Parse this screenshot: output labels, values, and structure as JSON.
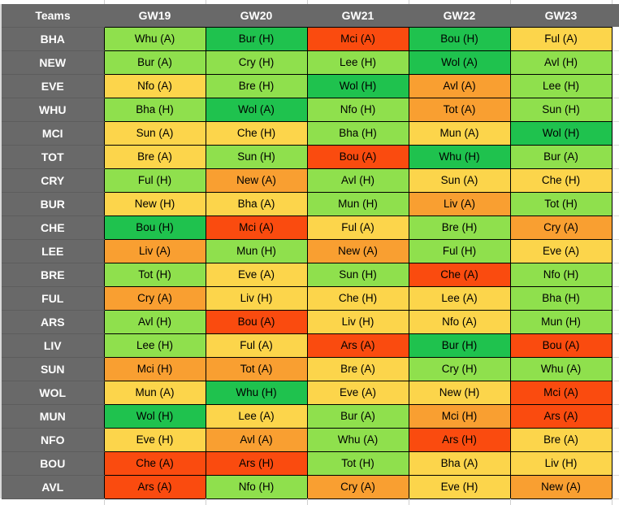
{
  "chart_data": {
    "type": "table",
    "description": "Fixture difficulty rating grid, teams vs gameweeks, cells colored by difficulty",
    "columns": [
      "Teams",
      "GW19",
      "GW20",
      "GW21",
      "GW22",
      "GW23"
    ],
    "difficulty_colors": {
      "easy": "#1fc24e",
      "fair": "#8fe04d",
      "medium": "#fcd54b",
      "hard": "#f99f31",
      "very_hard": "#fa4b0f"
    },
    "header_bg": "#696969",
    "header_text_color": "#ffffff",
    "cell_text_color": "#000000",
    "cell_border_color": "#000000",
    "rows": [
      {
        "team": "BHA",
        "fixtures": [
          {
            "label": "Whu (A)",
            "difficulty": "fair"
          },
          {
            "label": "Bur (H)",
            "difficulty": "easy"
          },
          {
            "label": "Mci (A)",
            "difficulty": "very_hard"
          },
          {
            "label": "Bou (H)",
            "difficulty": "easy"
          },
          {
            "label": "Ful (A)",
            "difficulty": "medium"
          }
        ]
      },
      {
        "team": "NEW",
        "fixtures": [
          {
            "label": "Bur (A)",
            "difficulty": "fair"
          },
          {
            "label": "Cry (H)",
            "difficulty": "fair"
          },
          {
            "label": "Lee (H)",
            "difficulty": "fair"
          },
          {
            "label": "Wol (A)",
            "difficulty": "easy"
          },
          {
            "label": "Avl (H)",
            "difficulty": "fair"
          }
        ]
      },
      {
        "team": "EVE",
        "fixtures": [
          {
            "label": "Nfo (A)",
            "difficulty": "medium"
          },
          {
            "label": "Bre (H)",
            "difficulty": "fair"
          },
          {
            "label": "Wol (H)",
            "difficulty": "easy"
          },
          {
            "label": "Avl (A)",
            "difficulty": "hard"
          },
          {
            "label": "Lee (H)",
            "difficulty": "fair"
          }
        ]
      },
      {
        "team": "WHU",
        "fixtures": [
          {
            "label": "Bha (H)",
            "difficulty": "fair"
          },
          {
            "label": "Wol (A)",
            "difficulty": "easy"
          },
          {
            "label": "Nfo (H)",
            "difficulty": "fair"
          },
          {
            "label": "Tot (A)",
            "difficulty": "hard"
          },
          {
            "label": "Sun (H)",
            "difficulty": "fair"
          }
        ]
      },
      {
        "team": "MCI",
        "fixtures": [
          {
            "label": "Sun (A)",
            "difficulty": "medium"
          },
          {
            "label": "Che (H)",
            "difficulty": "medium"
          },
          {
            "label": "Bha (H)",
            "difficulty": "fair"
          },
          {
            "label": "Mun (A)",
            "difficulty": "medium"
          },
          {
            "label": "Wol (H)",
            "difficulty": "easy"
          }
        ]
      },
      {
        "team": "TOT",
        "fixtures": [
          {
            "label": "Bre (A)",
            "difficulty": "medium"
          },
          {
            "label": "Sun (H)",
            "difficulty": "fair"
          },
          {
            "label": "Bou (A)",
            "difficulty": "very_hard"
          },
          {
            "label": "Whu (H)",
            "difficulty": "easy"
          },
          {
            "label": "Bur (A)",
            "difficulty": "fair"
          }
        ]
      },
      {
        "team": "CRY",
        "fixtures": [
          {
            "label": "Ful (H)",
            "difficulty": "fair"
          },
          {
            "label": "New (A)",
            "difficulty": "hard"
          },
          {
            "label": "Avl (H)",
            "difficulty": "fair"
          },
          {
            "label": "Sun (A)",
            "difficulty": "medium"
          },
          {
            "label": "Che (H)",
            "difficulty": "medium"
          }
        ]
      },
      {
        "team": "BUR",
        "fixtures": [
          {
            "label": "New (H)",
            "difficulty": "medium"
          },
          {
            "label": "Bha (A)",
            "difficulty": "medium"
          },
          {
            "label": "Mun (H)",
            "difficulty": "fair"
          },
          {
            "label": "Liv (A)",
            "difficulty": "hard"
          },
          {
            "label": "Tot (H)",
            "difficulty": "fair"
          }
        ]
      },
      {
        "team": "CHE",
        "fixtures": [
          {
            "label": "Bou (H)",
            "difficulty": "easy"
          },
          {
            "label": "Mci (A)",
            "difficulty": "very_hard"
          },
          {
            "label": "Ful (A)",
            "difficulty": "medium"
          },
          {
            "label": "Bre (H)",
            "difficulty": "fair"
          },
          {
            "label": "Cry (A)",
            "difficulty": "hard"
          }
        ]
      },
      {
        "team": "LEE",
        "fixtures": [
          {
            "label": "Liv (A)",
            "difficulty": "hard"
          },
          {
            "label": "Mun (H)",
            "difficulty": "fair"
          },
          {
            "label": "New (A)",
            "difficulty": "hard"
          },
          {
            "label": "Ful (H)",
            "difficulty": "fair"
          },
          {
            "label": "Eve (A)",
            "difficulty": "medium"
          }
        ]
      },
      {
        "team": "BRE",
        "fixtures": [
          {
            "label": "Tot (H)",
            "difficulty": "fair"
          },
          {
            "label": "Eve (A)",
            "difficulty": "medium"
          },
          {
            "label": "Sun (H)",
            "difficulty": "fair"
          },
          {
            "label": "Che (A)",
            "difficulty": "very_hard"
          },
          {
            "label": "Nfo (H)",
            "difficulty": "fair"
          }
        ]
      },
      {
        "team": "FUL",
        "fixtures": [
          {
            "label": "Cry (A)",
            "difficulty": "hard"
          },
          {
            "label": "Liv (H)",
            "difficulty": "medium"
          },
          {
            "label": "Che (H)",
            "difficulty": "medium"
          },
          {
            "label": "Lee (A)",
            "difficulty": "medium"
          },
          {
            "label": "Bha (H)",
            "difficulty": "fair"
          }
        ]
      },
      {
        "team": "ARS",
        "fixtures": [
          {
            "label": "Avl (H)",
            "difficulty": "fair"
          },
          {
            "label": "Bou (A)",
            "difficulty": "very_hard"
          },
          {
            "label": "Liv (H)",
            "difficulty": "medium"
          },
          {
            "label": "Nfo (A)",
            "difficulty": "medium"
          },
          {
            "label": "Mun (H)",
            "difficulty": "fair"
          }
        ]
      },
      {
        "team": "LIV",
        "fixtures": [
          {
            "label": "Lee (H)",
            "difficulty": "fair"
          },
          {
            "label": "Ful (A)",
            "difficulty": "medium"
          },
          {
            "label": "Ars (A)",
            "difficulty": "very_hard"
          },
          {
            "label": "Bur (H)",
            "difficulty": "easy"
          },
          {
            "label": "Bou (A)",
            "difficulty": "very_hard"
          }
        ]
      },
      {
        "team": "SUN",
        "fixtures": [
          {
            "label": "Mci (H)",
            "difficulty": "hard"
          },
          {
            "label": "Tot (A)",
            "difficulty": "hard"
          },
          {
            "label": "Bre (A)",
            "difficulty": "medium"
          },
          {
            "label": "Cry (H)",
            "difficulty": "fair"
          },
          {
            "label": "Whu (A)",
            "difficulty": "fair"
          }
        ]
      },
      {
        "team": "WOL",
        "fixtures": [
          {
            "label": "Mun (A)",
            "difficulty": "medium"
          },
          {
            "label": "Whu (H)",
            "difficulty": "easy"
          },
          {
            "label": "Eve (A)",
            "difficulty": "medium"
          },
          {
            "label": "New (H)",
            "difficulty": "medium"
          },
          {
            "label": "Mci (A)",
            "difficulty": "very_hard"
          }
        ]
      },
      {
        "team": "MUN",
        "fixtures": [
          {
            "label": "Wol (H)",
            "difficulty": "easy"
          },
          {
            "label": "Lee (A)",
            "difficulty": "medium"
          },
          {
            "label": "Bur (A)",
            "difficulty": "fair"
          },
          {
            "label": "Mci (H)",
            "difficulty": "hard"
          },
          {
            "label": "Ars (A)",
            "difficulty": "very_hard"
          }
        ]
      },
      {
        "team": "NFO",
        "fixtures": [
          {
            "label": "Eve (H)",
            "difficulty": "medium"
          },
          {
            "label": "Avl (A)",
            "difficulty": "hard"
          },
          {
            "label": "Whu (A)",
            "difficulty": "fair"
          },
          {
            "label": "Ars (H)",
            "difficulty": "very_hard"
          },
          {
            "label": "Bre (A)",
            "difficulty": "medium"
          }
        ]
      },
      {
        "team": "BOU",
        "fixtures": [
          {
            "label": "Che (A)",
            "difficulty": "very_hard"
          },
          {
            "label": "Ars (H)",
            "difficulty": "very_hard"
          },
          {
            "label": "Tot (H)",
            "difficulty": "fair"
          },
          {
            "label": "Bha (A)",
            "difficulty": "medium"
          },
          {
            "label": "Liv (H)",
            "difficulty": "medium"
          }
        ]
      },
      {
        "team": "AVL",
        "fixtures": [
          {
            "label": "Ars (A)",
            "difficulty": "very_hard"
          },
          {
            "label": "Nfo (H)",
            "difficulty": "fair"
          },
          {
            "label": "Cry (A)",
            "difficulty": "hard"
          },
          {
            "label": "Eve (H)",
            "difficulty": "medium"
          },
          {
            "label": "New (A)",
            "difficulty": "hard"
          }
        ]
      }
    ]
  }
}
